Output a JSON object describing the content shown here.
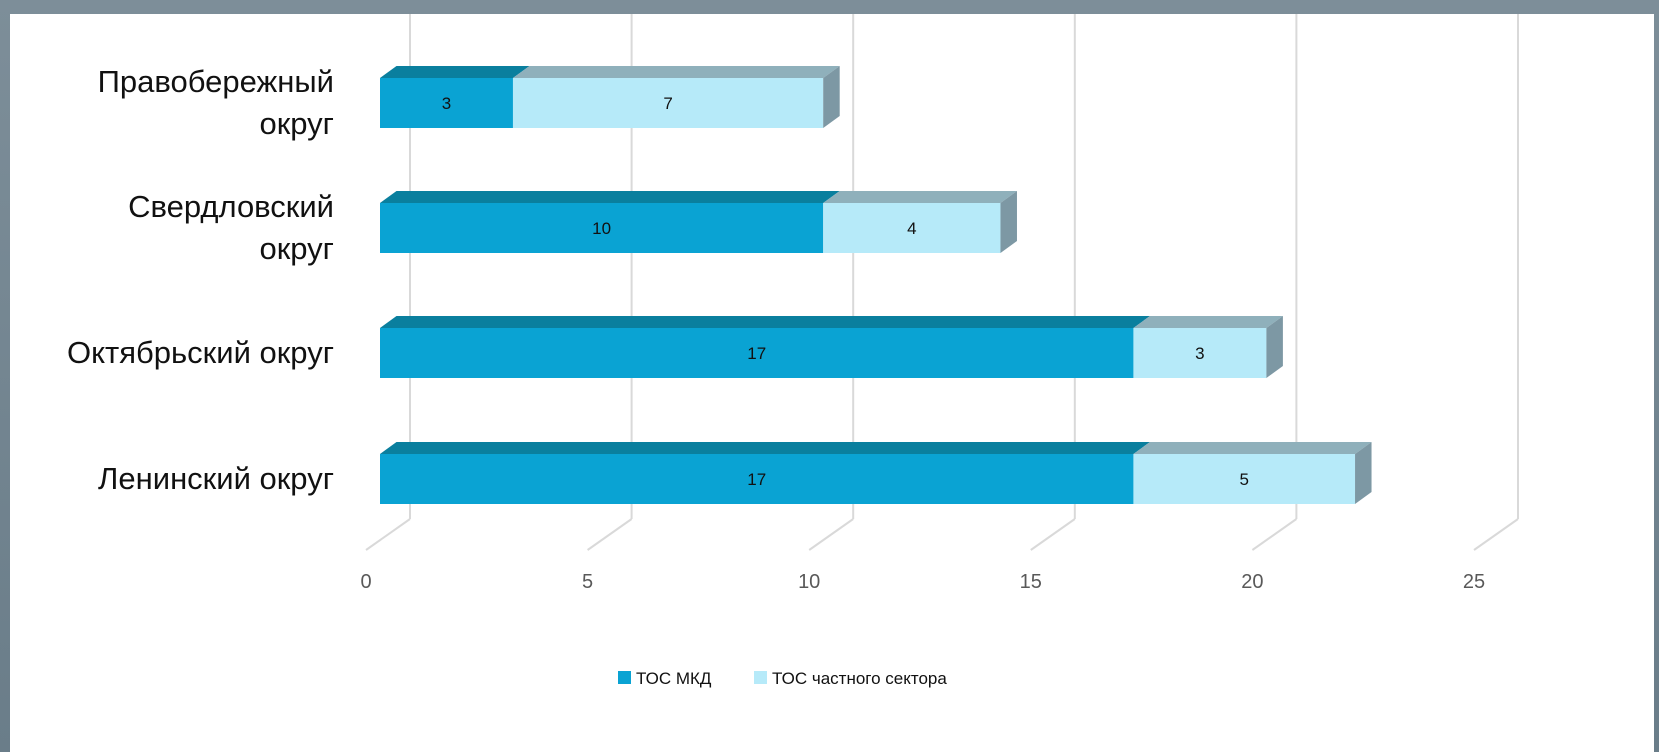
{
  "chart_data": {
    "type": "bar",
    "orientation": "horizontal",
    "stacked": true,
    "style": "3d",
    "categories": [
      [
        "Правобережный",
        "округ"
      ],
      [
        "Свердловский",
        "округ"
      ],
      [
        "Октябрьский округ"
      ],
      [
        "Ленинский округ"
      ]
    ],
    "series": [
      {
        "name": "ТОС МКД",
        "values": [
          3,
          10,
          17,
          17
        ],
        "color": "#0aa3d3",
        "top_color": "#0a7f9e"
      },
      {
        "name": "ТОС частного сектора",
        "values": [
          7,
          4,
          3,
          5
        ],
        "color": "#b6eaf9",
        "top_color": "#8fb0bb"
      }
    ],
    "xlim": [
      0,
      25
    ],
    "xticks": [
      0,
      5,
      10,
      15,
      20,
      25
    ],
    "grid": true,
    "legend_position": "bottom",
    "side_color": "#7d98a4"
  }
}
